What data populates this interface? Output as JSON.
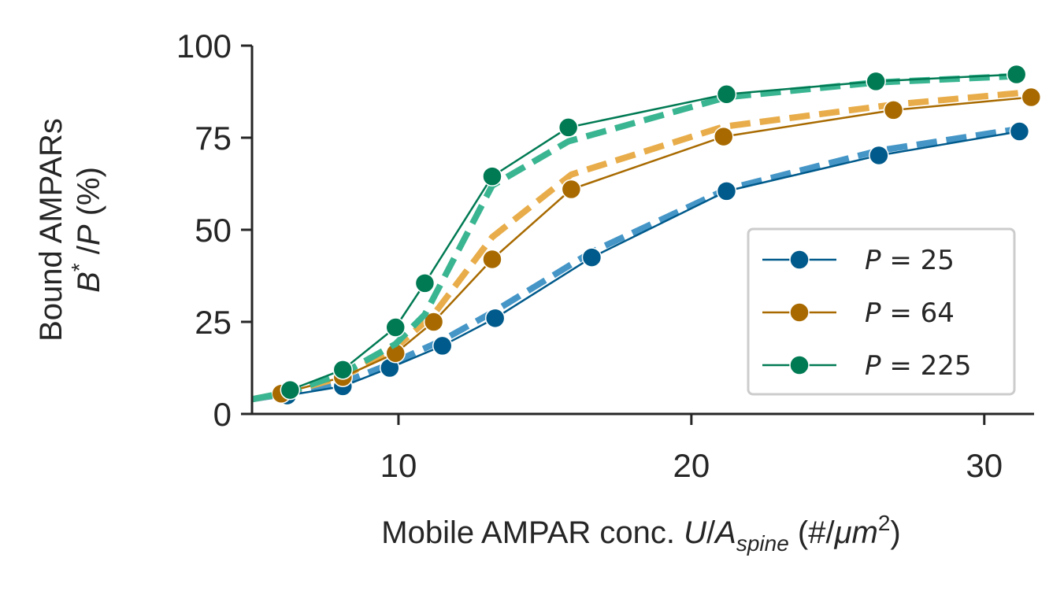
{
  "chart_data": {
    "type": "line",
    "xlabel": {
      "prefix": "Mobile AMPAR conc. ",
      "var_main": "U",
      "slash": "/",
      "var_a": "A",
      "subscript": "spine",
      "units_pre": " (#/",
      "units_mu": "μm",
      "superscript": "2",
      "units_post": ")"
    },
    "ylabel": {
      "line1": "Bound AMPARs",
      "var_b": "B",
      "star": "*",
      "slash": " /",
      "var_p": "P",
      "units": " (%)"
    },
    "xlim": [
      5,
      31.7
    ],
    "ylim": [
      0,
      100
    ],
    "xticks": [
      10,
      20,
      30
    ],
    "yticks": [
      0,
      25,
      50,
      75,
      100
    ],
    "grid": false,
    "legend_position": "lower-right",
    "series": [
      {
        "name": "P = 25",
        "legend_var": "P",
        "legend_eq": " = ",
        "legend_value": "25",
        "color": "#005a8b",
        "fit_color": "#4596c7",
        "x": [
          6.2,
          8.1,
          9.7,
          11.5,
          13.3,
          16.6,
          21.2,
          26.4,
          31.2
        ],
        "y": [
          5,
          7.5,
          12.5,
          18.5,
          26,
          42.5,
          60.5,
          70.2,
          76.7
        ],
        "fit_x": [
          5,
          6.2,
          8.1,
          9.7,
          11.5,
          13.3,
          16.6,
          21.2,
          26.4,
          31.5
        ],
        "fit_y": [
          4,
          5.5,
          8.5,
          13.5,
          20,
          28,
          44,
          61,
          71.5,
          77.8
        ]
      },
      {
        "name": "P = 64",
        "legend_var": "P",
        "legend_eq": " = ",
        "legend_value": "64",
        "color": "#a86a00",
        "fit_color": "#e8ad4a",
        "x": [
          6,
          8.1,
          9.9,
          11.2,
          13.2,
          15.9,
          21.1,
          26.9,
          31.6
        ],
        "y": [
          5.5,
          10,
          16.5,
          25,
          42,
          61,
          75.3,
          82.5,
          86
        ],
        "fit_x": [
          5,
          6,
          8.1,
          9.9,
          11.2,
          13.2,
          15.9,
          21.1,
          26.9,
          31.7
        ],
        "fit_y": [
          4,
          5.5,
          10,
          18,
          27,
          48,
          65,
          78,
          84,
          87.5
        ]
      },
      {
        "name": "P = 225",
        "legend_var": "P",
        "legend_eq": " = ",
        "legend_value": "225",
        "color": "#007a53",
        "fit_color": "#3ab591",
        "x": [
          6.3,
          8.1,
          9.9,
          10.9,
          13.2,
          15.8,
          21.2,
          26.3,
          31.1
        ],
        "y": [
          6.5,
          12,
          23.5,
          35.5,
          64.5,
          77.8,
          86.8,
          90.3,
          92.2
        ],
        "fit_x": [
          5,
          6.3,
          8.1,
          9.9,
          10.9,
          13.2,
          15.8,
          21.2,
          26.3,
          31.3
        ],
        "fit_y": [
          4,
          6,
          11,
          19,
          27,
          62,
          74,
          86,
          90,
          91.8
        ]
      }
    ]
  }
}
